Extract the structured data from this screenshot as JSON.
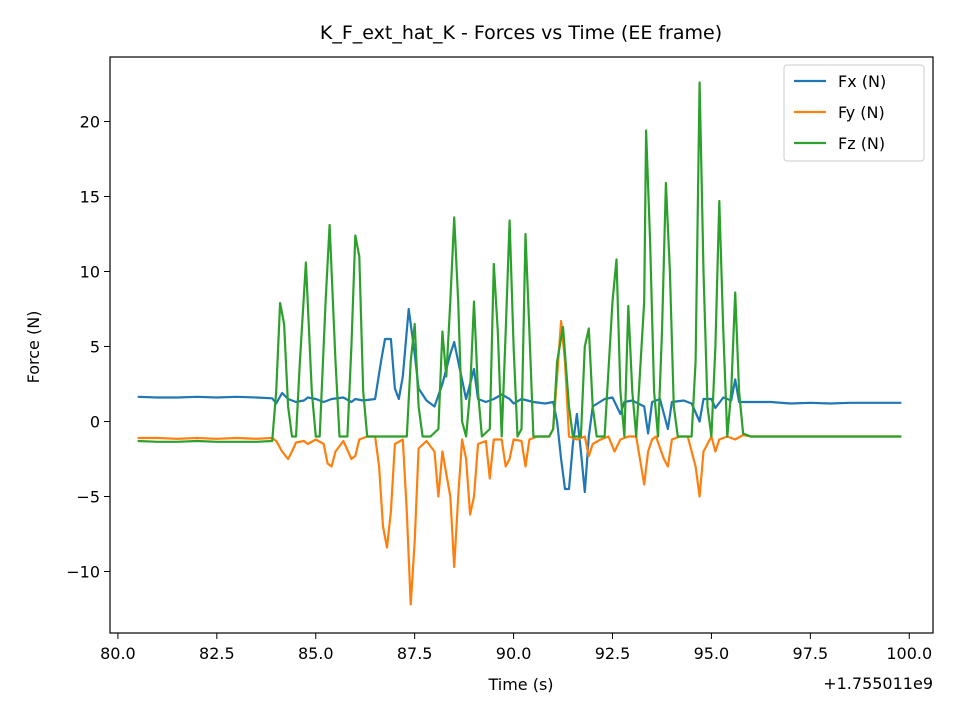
{
  "chart_data": {
    "type": "line",
    "title": "K_F_ext_hat_K - Forces vs Time (EE frame)",
    "xlabel": "Time (s)",
    "ylabel": "Force (N)",
    "x_offset_label": "+1.755011e9",
    "xlim": [
      79.8,
      100.6
    ],
    "ylim": [
      -14.1,
      24.3
    ],
    "xticks": [
      80.0,
      82.5,
      85.0,
      87.5,
      90.0,
      92.5,
      95.0,
      97.5,
      100.0
    ],
    "xtick_labels": [
      "80.0",
      "82.5",
      "85.0",
      "87.5",
      "90.0",
      "92.5",
      "95.0",
      "97.5",
      "100.0"
    ],
    "yticks": [
      -10,
      -5,
      0,
      5,
      10,
      15,
      20
    ],
    "ytick_labels": [
      "−10",
      "−5",
      "0",
      "5",
      "10",
      "15",
      "20"
    ],
    "legend_position": "top-right",
    "grid": false,
    "series": [
      {
        "name": "Fx (N)",
        "color": "#1f77b4",
        "points": [
          [
            80.5,
            1.65
          ],
          [
            81.0,
            1.6
          ],
          [
            81.5,
            1.6
          ],
          [
            82.0,
            1.65
          ],
          [
            82.5,
            1.6
          ],
          [
            83.0,
            1.65
          ],
          [
            83.5,
            1.6
          ],
          [
            83.9,
            1.55
          ],
          [
            84.0,
            1.2
          ],
          [
            84.15,
            1.9
          ],
          [
            84.3,
            1.5
          ],
          [
            84.5,
            1.3
          ],
          [
            84.7,
            1.4
          ],
          [
            84.8,
            1.6
          ],
          [
            85.0,
            1.5
          ],
          [
            85.2,
            1.3
          ],
          [
            85.4,
            1.5
          ],
          [
            85.7,
            1.6
          ],
          [
            85.9,
            1.3
          ],
          [
            86.0,
            1.5
          ],
          [
            86.2,
            1.4
          ],
          [
            86.5,
            1.5
          ],
          [
            86.65,
            4.0
          ],
          [
            86.75,
            5.5
          ],
          [
            86.9,
            5.5
          ],
          [
            87.0,
            2.2
          ],
          [
            87.1,
            1.5
          ],
          [
            87.2,
            3.0
          ],
          [
            87.35,
            7.5
          ],
          [
            87.5,
            4.5
          ],
          [
            87.6,
            2.2
          ],
          [
            87.8,
            1.4
          ],
          [
            88.0,
            1.0
          ],
          [
            88.2,
            2.5
          ],
          [
            88.4,
            4.5
          ],
          [
            88.5,
            5.3
          ],
          [
            88.6,
            4.0
          ],
          [
            88.8,
            1.5
          ],
          [
            89.0,
            3.5
          ],
          [
            89.1,
            1.5
          ],
          [
            89.3,
            1.3
          ],
          [
            89.5,
            1.5
          ],
          [
            89.7,
            1.8
          ],
          [
            89.9,
            1.5
          ],
          [
            90.0,
            1.2
          ],
          [
            90.2,
            1.5
          ],
          [
            90.5,
            1.3
          ],
          [
            90.8,
            1.2
          ],
          [
            91.0,
            1.3
          ],
          [
            91.1,
            0.0
          ],
          [
            91.2,
            -2.5
          ],
          [
            91.3,
            -4.5
          ],
          [
            91.4,
            -4.5
          ],
          [
            91.5,
            -1.5
          ],
          [
            91.6,
            0.5
          ],
          [
            91.7,
            -2.0
          ],
          [
            91.8,
            -4.7
          ],
          [
            91.9,
            -1.0
          ],
          [
            92.0,
            1.0
          ],
          [
            92.3,
            1.5
          ],
          [
            92.5,
            1.6
          ],
          [
            92.7,
            0.5
          ],
          [
            92.8,
            1.3
          ],
          [
            93.0,
            1.4
          ],
          [
            93.3,
            1.0
          ],
          [
            93.4,
            -0.8
          ],
          [
            93.5,
            1.3
          ],
          [
            93.7,
            1.5
          ],
          [
            93.9,
            -0.5
          ],
          [
            94.0,
            1.3
          ],
          [
            94.3,
            1.4
          ],
          [
            94.5,
            1.2
          ],
          [
            94.7,
            0.0
          ],
          [
            94.8,
            1.5
          ],
          [
            95.0,
            1.5
          ],
          [
            95.1,
            0.9
          ],
          [
            95.3,
            1.6
          ],
          [
            95.5,
            1.4
          ],
          [
            95.6,
            2.8
          ],
          [
            95.7,
            1.3
          ],
          [
            96.0,
            1.3
          ],
          [
            96.5,
            1.3
          ],
          [
            97.0,
            1.2
          ],
          [
            97.5,
            1.25
          ],
          [
            98.0,
            1.2
          ],
          [
            98.5,
            1.25
          ],
          [
            99.0,
            1.25
          ],
          [
            99.5,
            1.25
          ],
          [
            99.8,
            1.25
          ]
        ]
      },
      {
        "name": "Fy (N)",
        "color": "#ff7f0e",
        "points": [
          [
            80.5,
            -1.1
          ],
          [
            81.0,
            -1.1
          ],
          [
            81.5,
            -1.15
          ],
          [
            82.0,
            -1.1
          ],
          [
            82.5,
            -1.15
          ],
          [
            83.0,
            -1.1
          ],
          [
            83.5,
            -1.15
          ],
          [
            83.9,
            -1.1
          ],
          [
            84.0,
            -1.3
          ],
          [
            84.15,
            -2.0
          ],
          [
            84.3,
            -2.5
          ],
          [
            84.4,
            -2.0
          ],
          [
            84.5,
            -1.4
          ],
          [
            84.7,
            -1.3
          ],
          [
            84.8,
            -1.5
          ],
          [
            85.0,
            -1.2
          ],
          [
            85.2,
            -1.5
          ],
          [
            85.3,
            -2.8
          ],
          [
            85.4,
            -3.0
          ],
          [
            85.5,
            -2.0
          ],
          [
            85.7,
            -1.3
          ],
          [
            85.9,
            -2.5
          ],
          [
            86.0,
            -2.3
          ],
          [
            86.1,
            -1.2
          ],
          [
            86.3,
            -1.0
          ],
          [
            86.5,
            -1.0
          ],
          [
            86.6,
            -3.0
          ],
          [
            86.7,
            -7.0
          ],
          [
            86.8,
            -8.4
          ],
          [
            86.9,
            -6.0
          ],
          [
            87.0,
            -1.5
          ],
          [
            87.2,
            -1.2
          ],
          [
            87.3,
            -6.0
          ],
          [
            87.4,
            -12.2
          ],
          [
            87.5,
            -8.0
          ],
          [
            87.6,
            -1.8
          ],
          [
            87.8,
            -1.3
          ],
          [
            88.0,
            -2.0
          ],
          [
            88.1,
            -5.0
          ],
          [
            88.2,
            -2.0
          ],
          [
            88.4,
            -5.0
          ],
          [
            88.5,
            -9.7
          ],
          [
            88.6,
            -5.0
          ],
          [
            88.7,
            -1.2
          ],
          [
            88.8,
            -2.5
          ],
          [
            88.9,
            -6.2
          ],
          [
            89.0,
            -5.0
          ],
          [
            89.1,
            -1.5
          ],
          [
            89.3,
            -1.3
          ],
          [
            89.4,
            -3.8
          ],
          [
            89.5,
            -1.2
          ],
          [
            89.7,
            -1.2
          ],
          [
            89.8,
            -3.0
          ],
          [
            89.9,
            -2.5
          ],
          [
            90.0,
            -1.2
          ],
          [
            90.2,
            -1.3
          ],
          [
            90.3,
            -3.0
          ],
          [
            90.4,
            -1.2
          ],
          [
            90.6,
            -1.0
          ],
          [
            90.9,
            -1.0
          ],
          [
            91.0,
            -0.5
          ],
          [
            91.1,
            3.0
          ],
          [
            91.2,
            6.7
          ],
          [
            91.3,
            4.0
          ],
          [
            91.4,
            -1.0
          ],
          [
            91.6,
            -1.2
          ],
          [
            91.8,
            -1.0
          ],
          [
            91.9,
            -2.3
          ],
          [
            92.0,
            -1.5
          ],
          [
            92.2,
            -1.2
          ],
          [
            92.4,
            -1.0
          ],
          [
            92.55,
            -2.0
          ],
          [
            92.7,
            -1.2
          ],
          [
            92.9,
            -1.0
          ],
          [
            93.1,
            -1.0
          ],
          [
            93.3,
            -4.2
          ],
          [
            93.4,
            -2.0
          ],
          [
            93.5,
            -1.2
          ],
          [
            93.6,
            -1.0
          ],
          [
            93.8,
            -2.5
          ],
          [
            93.9,
            -3.0
          ],
          [
            94.0,
            -1.2
          ],
          [
            94.2,
            -1.0
          ],
          [
            94.4,
            -1.0
          ],
          [
            94.6,
            -3.0
          ],
          [
            94.7,
            -5.0
          ],
          [
            94.8,
            -2.0
          ],
          [
            95.0,
            -1.0
          ],
          [
            95.1,
            -2.0
          ],
          [
            95.2,
            -1.2
          ],
          [
            95.4,
            -1.0
          ],
          [
            95.6,
            -1.2
          ],
          [
            95.8,
            -0.9
          ],
          [
            96.0,
            -1.0
          ],
          [
            96.5,
            -1.0
          ],
          [
            97.0,
            -1.0
          ],
          [
            97.5,
            -1.0
          ],
          [
            98.0,
            -1.0
          ],
          [
            98.5,
            -1.0
          ],
          [
            99.0,
            -1.0
          ],
          [
            99.5,
            -1.0
          ],
          [
            99.8,
            -1.0
          ]
        ]
      },
      {
        "name": "Fz (N)",
        "color": "#2ca02c",
        "points": [
          [
            80.5,
            -1.3
          ],
          [
            81.0,
            -1.35
          ],
          [
            81.5,
            -1.35
          ],
          [
            82.0,
            -1.3
          ],
          [
            82.5,
            -1.35
          ],
          [
            83.0,
            -1.35
          ],
          [
            83.5,
            -1.35
          ],
          [
            83.9,
            -1.3
          ],
          [
            84.0,
            2.0
          ],
          [
            84.1,
            7.9
          ],
          [
            84.2,
            6.5
          ],
          [
            84.3,
            1.0
          ],
          [
            84.4,
            -1.0
          ],
          [
            84.5,
            -1.0
          ],
          [
            84.6,
            4.0
          ],
          [
            84.75,
            10.6
          ],
          [
            84.9,
            2.0
          ],
          [
            85.0,
            -1.0
          ],
          [
            85.1,
            -1.0
          ],
          [
            85.25,
            8.0
          ],
          [
            85.35,
            13.1
          ],
          [
            85.5,
            4.0
          ],
          [
            85.6,
            -1.0
          ],
          [
            85.8,
            -1.0
          ],
          [
            85.9,
            5.0
          ],
          [
            86.0,
            12.4
          ],
          [
            86.1,
            11.0
          ],
          [
            86.2,
            2.0
          ],
          [
            86.3,
            -1.0
          ],
          [
            86.5,
            -1.0
          ],
          [
            86.7,
            -1.0
          ],
          [
            86.9,
            -1.0
          ],
          [
            87.1,
            -1.0
          ],
          [
            87.3,
            -1.0
          ],
          [
            87.4,
            4.0
          ],
          [
            87.5,
            6.5
          ],
          [
            87.6,
            1.0
          ],
          [
            87.7,
            -1.0
          ],
          [
            87.9,
            -1.0
          ],
          [
            88.1,
            -0.5
          ],
          [
            88.2,
            6.0
          ],
          [
            88.3,
            3.0
          ],
          [
            88.4,
            8.0
          ],
          [
            88.5,
            13.6
          ],
          [
            88.6,
            8.0
          ],
          [
            88.7,
            0.0
          ],
          [
            88.8,
            -1.0
          ],
          [
            88.9,
            2.0
          ],
          [
            89.0,
            8.0
          ],
          [
            89.1,
            2.0
          ],
          [
            89.2,
            -1.0
          ],
          [
            89.4,
            -0.5
          ],
          [
            89.5,
            10.5
          ],
          [
            89.6,
            6.0
          ],
          [
            89.7,
            -1.0
          ],
          [
            89.8,
            6.0
          ],
          [
            89.9,
            13.4
          ],
          [
            90.0,
            5.0
          ],
          [
            90.1,
            -1.0
          ],
          [
            90.2,
            -0.5
          ],
          [
            90.3,
            12.5
          ],
          [
            90.4,
            6.0
          ],
          [
            90.5,
            -1.0
          ],
          [
            90.7,
            -1.0
          ],
          [
            90.9,
            -1.0
          ],
          [
            91.0,
            -0.5
          ],
          [
            91.1,
            4.0
          ],
          [
            91.25,
            6.3
          ],
          [
            91.4,
            1.0
          ],
          [
            91.5,
            -1.0
          ],
          [
            91.7,
            -1.0
          ],
          [
            91.8,
            5.0
          ],
          [
            91.9,
            6.2
          ],
          [
            92.0,
            1.0
          ],
          [
            92.1,
            -1.0
          ],
          [
            92.3,
            -1.0
          ],
          [
            92.5,
            8.0
          ],
          [
            92.6,
            10.8
          ],
          [
            92.7,
            2.0
          ],
          [
            92.8,
            -1.0
          ],
          [
            92.9,
            7.7
          ],
          [
            93.0,
            2.0
          ],
          [
            93.1,
            -1.0
          ],
          [
            93.3,
            8.0
          ],
          [
            93.35,
            19.4
          ],
          [
            93.45,
            12.0
          ],
          [
            93.55,
            2.0
          ],
          [
            93.65,
            -1.0
          ],
          [
            93.75,
            6.0
          ],
          [
            93.85,
            15.9
          ],
          [
            93.95,
            10.0
          ],
          [
            94.05,
            1.0
          ],
          [
            94.15,
            -1.0
          ],
          [
            94.3,
            -1.0
          ],
          [
            94.5,
            -1.0
          ],
          [
            94.6,
            4.0
          ],
          [
            94.7,
            22.6
          ],
          [
            94.8,
            10.0
          ],
          [
            94.9,
            1.0
          ],
          [
            95.0,
            -1.0
          ],
          [
            95.1,
            5.0
          ],
          [
            95.2,
            14.7
          ],
          [
            95.3,
            6.0
          ],
          [
            95.4,
            -1.0
          ],
          [
            95.5,
            2.0
          ],
          [
            95.6,
            8.6
          ],
          [
            95.7,
            2.0
          ],
          [
            95.8,
            -0.8
          ],
          [
            96.0,
            -1.0
          ],
          [
            96.5,
            -1.0
          ],
          [
            97.0,
            -1.0
          ],
          [
            97.5,
            -1.0
          ],
          [
            98.0,
            -1.0
          ],
          [
            98.5,
            -1.0
          ],
          [
            99.0,
            -1.0
          ],
          [
            99.5,
            -1.0
          ],
          [
            99.8,
            -1.0
          ]
        ]
      }
    ]
  }
}
